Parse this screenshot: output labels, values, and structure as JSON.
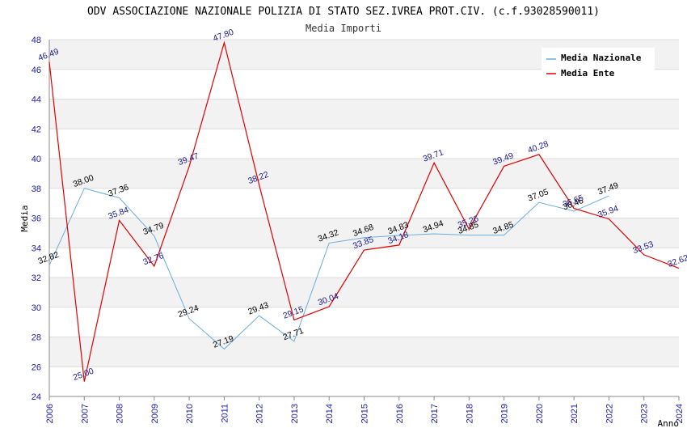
{
  "chart_data": {
    "type": "line",
    "title": "ODV ASSOCIAZIONE NAZIONALE POLIZIA DI STATO SEZ.IVREA PROT.CIV. (c.f.93028590011)",
    "subtitle": "Media Importi",
    "xlabel": "Anno",
    "ylabel": "Media",
    "ylim": [
      24,
      48
    ],
    "yticks": [
      24,
      26,
      28,
      30,
      32,
      34,
      36,
      38,
      40,
      42,
      44,
      46,
      48
    ],
    "x": [
      2006,
      2007,
      2008,
      2009,
      2010,
      2011,
      2012,
      2013,
      2014,
      2015,
      2016,
      2017,
      2018,
      2019,
      2020,
      2021,
      2022,
      2023,
      2024
    ],
    "grid": "horizontal alternating bands",
    "legend_position": "top-right",
    "series": [
      {
        "name": "Media Nazionale",
        "color": "#6aaee0",
        "label_color": "#000000",
        "x": [
          2006,
          2007,
          2008,
          2009,
          2010,
          2011,
          2012,
          2013,
          2014,
          2015,
          2016,
          2017,
          2018,
          2019,
          2020,
          2021,
          2022
        ],
        "values": [
          32.82,
          38.0,
          37.36,
          34.79,
          29.24,
          27.19,
          29.43,
          27.71,
          34.32,
          34.68,
          34.83,
          34.94,
          34.85,
          34.85,
          37.05,
          36.46,
          37.49
        ]
      },
      {
        "name": "Media Ente",
        "color": "#e00000",
        "label_color": "#1a1a8c",
        "x": [
          2006,
          2007,
          2008,
          2009,
          2010,
          2011,
          2012,
          2013,
          2014,
          2015,
          2016,
          2017,
          2018,
          2019,
          2020,
          2021,
          2022,
          2023,
          2024
        ],
        "values": [
          46.49,
          25.0,
          35.84,
          32.76,
          39.47,
          47.8,
          38.22,
          29.15,
          30.04,
          33.85,
          34.18,
          39.71,
          35.26,
          39.49,
          40.28,
          36.65,
          35.94,
          33.53,
          32.62
        ]
      }
    ]
  }
}
